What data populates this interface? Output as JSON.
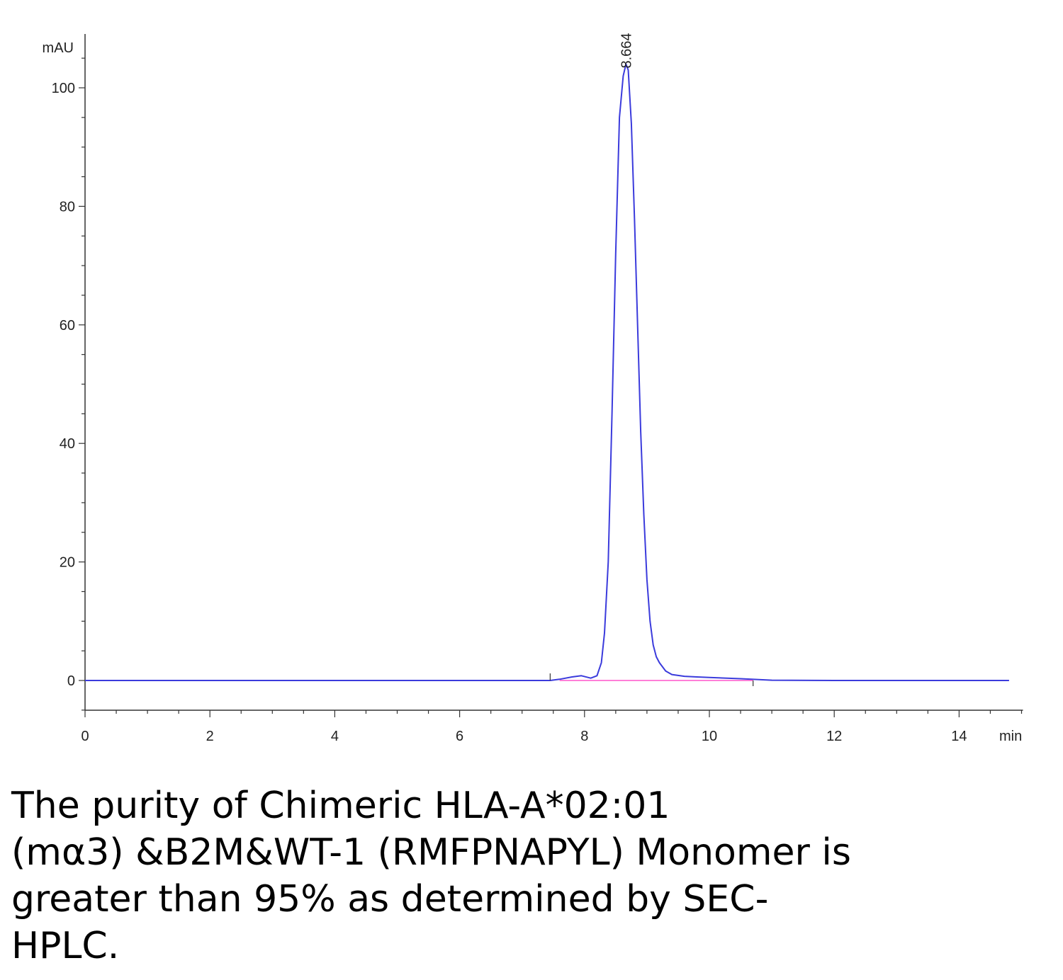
{
  "chart_data": {
    "type": "line",
    "ylabel": "mAU",
    "xlabel": "min",
    "xlim": [
      0,
      15
    ],
    "ylim": [
      -5,
      105
    ],
    "x_ticks": [
      0,
      2,
      4,
      6,
      8,
      10,
      12,
      14
    ],
    "y_ticks": [
      0,
      20,
      40,
      60,
      80,
      100
    ],
    "peak_label": "8.664",
    "peak": {
      "x": 8.664,
      "y": 104
    },
    "series": [
      {
        "color": "#3b3bdc",
        "x": [
          0,
          7.45,
          7.6,
          7.8,
          7.95,
          8.1,
          8.2,
          8.27,
          8.32,
          8.38,
          8.44,
          8.5,
          8.56,
          8.62,
          8.664,
          8.7,
          8.75,
          8.8,
          8.85,
          8.9,
          8.95,
          9.0,
          9.05,
          9.1,
          9.15,
          9.2,
          9.3,
          9.4,
          9.6,
          9.8,
          10.0,
          10.5,
          11.0,
          12.0,
          13.0,
          14.0,
          14.8
        ],
        "y": [
          0,
          0,
          0.2,
          0.6,
          0.8,
          0.4,
          0.8,
          3,
          8,
          20,
          45,
          72,
          95,
          102,
          104,
          103,
          94,
          78,
          60,
          42,
          28,
          17,
          10,
          6,
          4,
          3,
          1.6,
          1.0,
          0.7,
          0.6,
          0.5,
          0.3,
          0.05,
          0,
          0,
          0,
          0
        ]
      },
      {
        "color": "#ff55cc",
        "x": [
          7.6,
          10.7
        ],
        "y": [
          0,
          0
        ]
      }
    ]
  },
  "caption": {
    "lines": [
      "The purity of Chimeric HLA-A*02:01",
      "(mα3) &B2M&WT-1 (RMFPNAPYL) Monomer is",
      "greater than 95% as determined by SEC-",
      "HPLC."
    ]
  }
}
